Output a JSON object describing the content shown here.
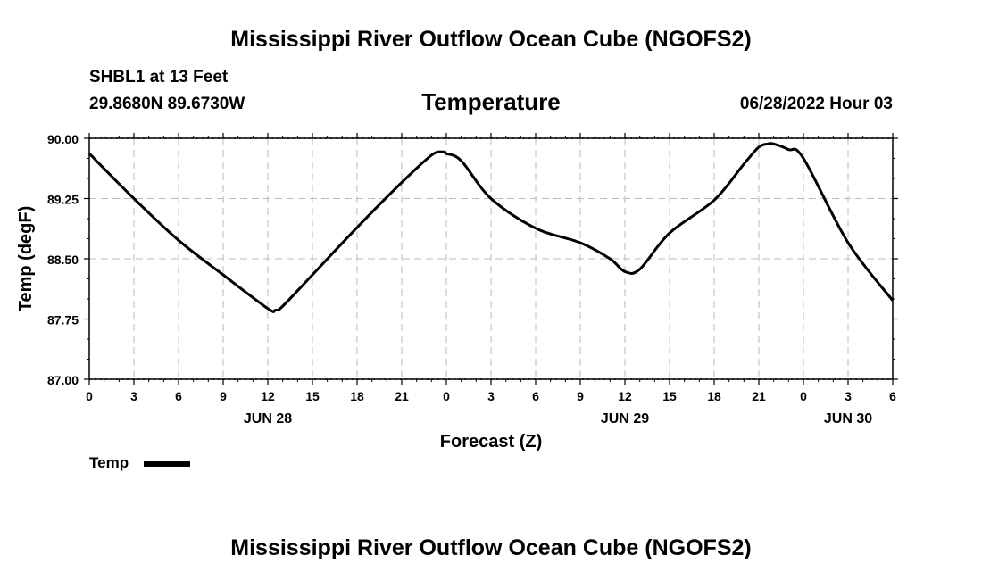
{
  "page": {
    "title_top": "Mississippi River Outflow Ocean Cube (NGOFS2)",
    "title_bottom": "Mississippi River Outflow Ocean Cube (NGOFS2)",
    "station": "SHBL1 at 13 Feet",
    "coords": "29.8680N  89.6730W",
    "datetime": "06/28/2022 Hour 03"
  },
  "chart_data": {
    "type": "line",
    "title": "Temperature",
    "xlabel": "Forecast (Z)",
    "ylabel": "Temp (degF)",
    "ylim": [
      87.0,
      90.0
    ],
    "xlim": [
      0,
      54
    ],
    "x_unit": "hours from 06/28 00Z",
    "yticks": [
      "90.00",
      "89.25",
      "88.50",
      "87.75",
      "87.00"
    ],
    "ytick_values": [
      90.0,
      89.25,
      88.5,
      87.75,
      87.0
    ],
    "xtick_labels": [
      "0",
      "3",
      "6",
      "9",
      "12",
      "15",
      "18",
      "21",
      "0",
      "3",
      "6",
      "9",
      "12",
      "15",
      "18",
      "21",
      "0",
      "3",
      "6"
    ],
    "date_labels": [
      {
        "label": "JUN 28",
        "x": 12
      },
      {
        "label": "JUN 29",
        "x": 36
      },
      {
        "label": "JUN 30",
        "x": 51
      }
    ],
    "grid": true,
    "legend": {
      "position": "bottom-left",
      "entries": [
        "Temp"
      ]
    },
    "series": [
      {
        "name": "Temp",
        "color": "#000000",
        "x": [
          0,
          3,
          6,
          9,
          12,
          12.5,
          13,
          15,
          18,
          21,
          23,
          23.8,
          24,
          25,
          27,
          30,
          33,
          35,
          36,
          37,
          39,
          42,
          44,
          45,
          45.6,
          46,
          47,
          48,
          51,
          54
        ],
        "y": [
          89.81,
          89.25,
          88.73,
          88.3,
          87.88,
          87.86,
          87.91,
          88.3,
          88.89,
          89.45,
          89.79,
          89.83,
          89.81,
          89.72,
          89.25,
          88.88,
          88.7,
          88.5,
          88.34,
          88.37,
          88.82,
          89.23,
          89.68,
          89.89,
          89.93,
          89.93,
          89.86,
          89.75,
          88.7,
          87.98
        ]
      }
    ]
  }
}
